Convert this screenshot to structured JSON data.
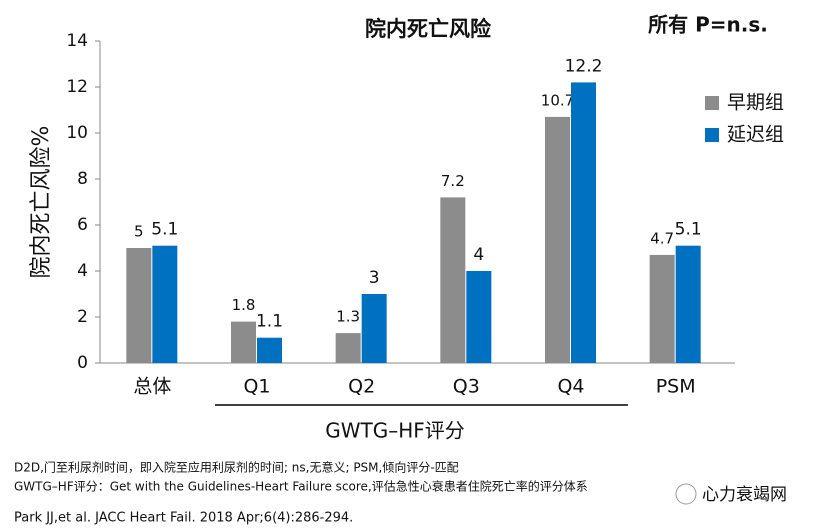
{
  "chart_data": {
    "type": "bar",
    "title": "院内死亡风险",
    "annotation": "所有 P=n.s.",
    "y_label": "院内死亡风险%",
    "categories": [
      "总体",
      "Q1",
      "Q2",
      "Q3",
      "Q4",
      "PSM"
    ],
    "group_label": "GWTG–HF评分",
    "series": [
      {
        "name": "早期组",
        "color": "#8c8c8c",
        "values": [
          5,
          1.8,
          1.3,
          7.2,
          10.7,
          4.7
        ]
      },
      {
        "name": "延迟组",
        "color": "#0070c0",
        "values": [
          5.1,
          1.1,
          3,
          4,
          12.2,
          5.1
        ]
      }
    ],
    "ylim": [
      0,
      14
    ],
    "yticks": [
      0,
      2,
      4,
      6,
      8,
      10,
      12,
      14
    ],
    "legend": "right"
  },
  "footnotes": [
    "D2D,门至利尿剂时间，即入院至应用利尿剂的时间; ns,无意义; PSM,倾向评分-匹配",
    "GWTG–HF评分：Get with the Guidelines-Heart Failure score,评估急性心衰患者住院死亡率的评分体系",
    "Park JJ,et al. JACC Heart Fail. 2018 Apr;6(4):286-294."
  ],
  "watermark": "心力衰竭网"
}
